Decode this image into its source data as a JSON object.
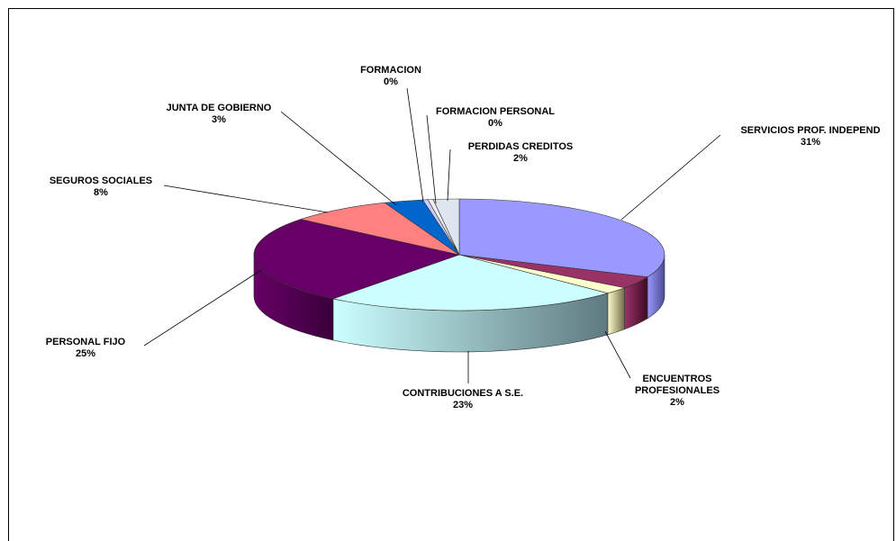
{
  "chart_data": {
    "type": "pie",
    "three_d": true,
    "title": "",
    "slices": [
      {
        "label": "SERVICIOS PROF. INDEPEND",
        "value": 31,
        "display": "31%",
        "color": "#9999ff",
        "dark": "#4b4b94"
      },
      {
        "label": "",
        "value": 3.5,
        "display": "",
        "color": "#993366",
        "dark": "#3e0a24"
      },
      {
        "label": "ENCUENTROS PROFESIONALES",
        "value": 2,
        "display": "2%",
        "color": "#ffffcc",
        "dark": "#6e6a48"
      },
      {
        "label": "CONTRIBUCIONES A S.E.",
        "value": 23,
        "display": "23%",
        "color": "#ccffff",
        "dark": "#5e7a80"
      },
      {
        "label": "PERSONAL FIJO",
        "value": 25,
        "display": "25%",
        "color": "#660066",
        "dark": "#3a003a"
      },
      {
        "label": "SEGUROS SOCIALES",
        "value": 8,
        "display": "8%",
        "color": "#ff8080",
        "dark": "#8a3a3a"
      },
      {
        "label": "JUNTA DE GOBIERNO",
        "value": 3,
        "display": "3%",
        "color": "#0066cc",
        "dark": "#003366"
      },
      {
        "label": "FORMACION",
        "value": 0.4,
        "display": "0%",
        "color": "#ccccff",
        "dark": "#66667f"
      },
      {
        "label": "FORMACION PERSONAL",
        "value": 0.4,
        "display": "0%",
        "color": "#eeeeee",
        "dark": "#777777"
      },
      {
        "label": "PERDIDAS CREDITOS",
        "value": 2,
        "display": "2%",
        "color": "#dde6ee",
        "dark": "#7a8590"
      }
    ],
    "legend": "none"
  }
}
